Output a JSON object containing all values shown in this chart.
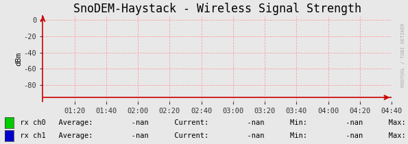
{
  "title": "SnoDEM-Haystack - Wireless Signal Strength",
  "ylabel": "dBm",
  "ylim": [
    -100,
    5
  ],
  "yticks": [
    0,
    -20,
    -40,
    -60,
    -80
  ],
  "xlim": [
    0,
    220
  ],
  "xtick_positions": [
    20,
    40,
    60,
    80,
    100,
    120,
    140,
    160,
    180,
    200,
    220
  ],
  "xtick_labels": [
    "01:20",
    "01:40",
    "02:00",
    "02:20",
    "02:40",
    "03:00",
    "03:20",
    "03:40",
    "04:00",
    "04:20",
    "04:40"
  ],
  "bg_color": "#e8e8e8",
  "plot_bg_color": "#e8e8e8",
  "grid_color": "#ff9999",
  "grid_alpha": 0.9,
  "axis_color": "#cc0000",
  "baseline_y": -95,
  "watermark": "RRDTOOL / TOBI OETIKER",
  "watermark_color": "#aaaaaa",
  "legend_entries": [
    {
      "label": "rx ch0",
      "color": "#00cc00"
    },
    {
      "label": "rx ch1",
      "color": "#0000cc"
    }
  ],
  "title_fontsize": 12,
  "tick_fontsize": 7.5,
  "ylabel_fontsize": 8,
  "legend_fontsize": 7.5
}
